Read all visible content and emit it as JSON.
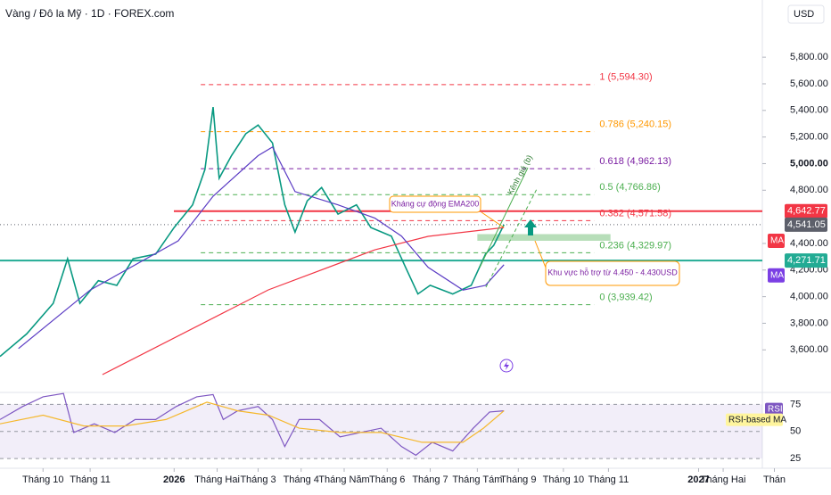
{
  "chart_data": [
    {
      "type": "line",
      "title": "Vàng / Đô la Mỹ · 1D · FOREX.com",
      "currency": "USD",
      "xlim": [
        -21,
        362
      ],
      "xticks": [
        {
          "value": 0,
          "label": "Tháng 10"
        },
        {
          "value": 23,
          "label": "Tháng 11"
        },
        {
          "value": 64,
          "label": "2026"
        },
        {
          "value": 85,
          "label": "Tháng Hai"
        },
        {
          "value": 105,
          "label": "Tháng 3"
        },
        {
          "value": 126,
          "label": "Tháng 4"
        },
        {
          "value": 147,
          "label": "Tháng Năm"
        },
        {
          "value": 168,
          "label": "Tháng 6"
        },
        {
          "value": 189,
          "label": "Tháng 7"
        },
        {
          "value": 212,
          "label": "Tháng Tám"
        },
        {
          "value": 232,
          "label": "Tháng 9"
        },
        {
          "value": 254,
          "label": "Tháng 10"
        },
        {
          "value": 276,
          "label": "Tháng 11"
        },
        {
          "value": 320,
          "label": "2027"
        },
        {
          "value": 332,
          "label": "Tháng Hai"
        },
        {
          "value": 357,
          "label": "Thán"
        }
      ],
      "ylim": [
        3280,
        6230
      ],
      "yticks": [
        {
          "value": 3600,
          "label": "3,600.00"
        },
        {
          "value": 3800,
          "label": "3,800.00"
        },
        {
          "value": 4000,
          "label": "4,000.00"
        },
        {
          "value": 4200,
          "label": "4,200.00"
        },
        {
          "value": 4400,
          "label": "4,400.00"
        },
        {
          "value": 4800,
          "label": "4,800.00"
        },
        {
          "value": 5000,
          "label": "5,000.00",
          "bold": true
        },
        {
          "value": 5200,
          "label": "5,200.00"
        },
        {
          "value": 5400,
          "label": "5,400.00"
        },
        {
          "value": 5600,
          "label": "5,600.00"
        },
        {
          "value": 5800,
          "label": "5,800.00"
        }
      ],
      "series": [
        {
          "color": "#089981",
          "x": [
            -21,
            -8,
            5,
            12,
            18,
            27,
            36,
            44,
            55,
            64,
            73,
            79,
            83,
            86,
            92,
            99,
            105,
            112,
            118,
            123,
            129,
            136,
            144,
            153,
            160,
            170,
            177,
            183,
            189,
            200,
            209,
            216,
            220,
            225
          ],
          "values": [
            3550,
            3720,
            3950,
            4285,
            3950,
            4120,
            4085,
            4285,
            4320,
            4520,
            4690,
            4955,
            5425,
            4890,
            5060,
            5225,
            5290,
            5155,
            4690,
            4485,
            4720,
            4820,
            4620,
            4690,
            4520,
            4455,
            4220,
            4020,
            4085,
            4020,
            4085,
            4320,
            4385,
            4541.05
          ]
        },
        {
          "color": "#f23645",
          "x": [
            29,
            110,
            162,
            188,
            225
          ],
          "values": [
            3414,
            4051,
            4352,
            4453,
            4520
          ]
        },
        {
          "color": "#5b3cc4",
          "x": [
            -12,
            23,
            66,
            83,
            105,
            112,
            123,
            144,
            162,
            175,
            188,
            205,
            216,
            225
          ],
          "values": [
            3610,
            4050,
            4420,
            4755,
            5060,
            5125,
            4790,
            4690,
            4590,
            4455,
            4220,
            4050,
            4085,
            4240
          ]
        }
      ],
      "price_labels": [
        {
          "value": 4642.77,
          "label": "4,642.77",
          "color": "#f23645"
        },
        {
          "value": 4541.05,
          "label": "4,541.05",
          "color": "#5d606b"
        },
        {
          "value": 4271.71,
          "label": "4,271.71",
          "color": "#22ab94"
        }
      ],
      "ma_labels": [
        {
          "value": 4420,
          "label": "MA",
          "color": "#f23645"
        },
        {
          "value": 4160,
          "label": "MA",
          "color": "#7b3fe4"
        }
      ],
      "fib_range": [
        77,
        269
      ],
      "fib_levels": [
        {
          "value": 5594.3,
          "label": "1 (5,594.30)",
          "color": "#f23645"
        },
        {
          "value": 5240.15,
          "label": "0.786 (5,240.15)",
          "color": "#ff9800"
        },
        {
          "value": 4962.13,
          "label": "0.618 (4,962.13)",
          "color": "#7b1fa2"
        },
        {
          "value": 4766.86,
          "label": "0.5 (4,766.86)",
          "color": "#4caf50"
        },
        {
          "value": 4571.58,
          "label": "0.382 (4,571.58)",
          "color": "#f23645"
        },
        {
          "value": 4329.97,
          "label": "0.236 (4,329.97)",
          "color": "#4caf50"
        },
        {
          "value": 3939.42,
          "label": "0 (3,939.42)",
          "color": "#4caf50"
        }
      ],
      "annotations": {
        "resistance": "Kháng cự động EMA200",
        "support": "Khu vực hỗ trợ từ 4.450 - 4.430USD",
        "channel": "Kênh giá (b)"
      }
    },
    {
      "type": "line",
      "ylim": [
        16,
        86
      ],
      "yticks": [
        25,
        50,
        75
      ],
      "series": [
        {
          "name": "RSI",
          "color": "#7e57c2",
          "x": [
            -21,
            -10,
            0,
            10,
            15,
            25,
            35,
            45,
            55,
            65,
            75,
            83,
            88,
            95,
            105,
            112,
            118,
            125,
            135,
            145,
            155,
            165,
            175,
            182,
            190,
            200,
            210,
            218,
            225
          ],
          "values": [
            61,
            73,
            82,
            85,
            49,
            57,
            49,
            61,
            61,
            73,
            82,
            84,
            61,
            69,
            73,
            61,
            36,
            61,
            61,
            45,
            49,
            53,
            36,
            28,
            40,
            32,
            53,
            68,
            69
          ]
        },
        {
          "name": "RSI-based MA",
          "color": "#f5b82e",
          "x": [
            -21,
            0,
            20,
            40,
            60,
            80,
            95,
            110,
            125,
            145,
            165,
            185,
            205,
            215,
            225
          ],
          "values": [
            57,
            65,
            55,
            55,
            61,
            77,
            69,
            65,
            53,
            49,
            49,
            40,
            40,
            53,
            69
          ]
        }
      ]
    }
  ]
}
